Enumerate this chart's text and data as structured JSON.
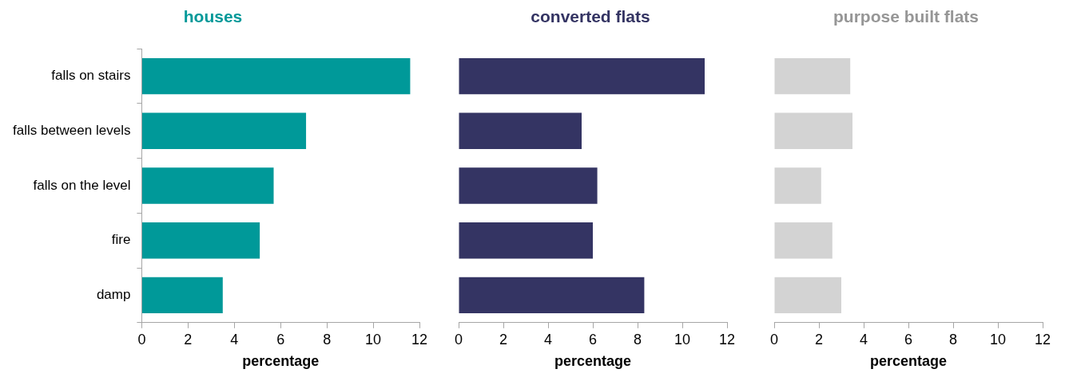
{
  "chart_data": [
    {
      "type": "bar",
      "orientation": "horizontal",
      "title": "houses",
      "xlabel": "percentage",
      "categories": [
        "falls on stairs",
        "falls between levels",
        "falls on the level",
        "fire",
        "damp"
      ],
      "values": [
        11.6,
        7.1,
        5.7,
        5.1,
        3.5
      ],
      "color": "#009999",
      "xlim": [
        0,
        12
      ],
      "xticks": [
        0,
        2,
        4,
        6,
        8,
        10,
        12
      ],
      "grid": false
    },
    {
      "type": "bar",
      "orientation": "horizontal",
      "title": "converted flats",
      "xlabel": "percentage",
      "categories": [
        null,
        null,
        null,
        null,
        null
      ],
      "values": [
        11.0,
        5.5,
        6.2,
        6.0,
        8.3
      ],
      "color": "#343463",
      "xlim": [
        0,
        12
      ],
      "xticks": [
        0,
        2,
        4,
        6,
        8,
        10,
        12
      ],
      "grid": false,
      "tick_labels": "x"
    },
    {
      "type": "bar",
      "orientation": "horizontal",
      "title": "purpose built flats",
      "xlabel": "percentage",
      "categories": [
        null,
        null,
        null,
        null,
        null
      ],
      "values": [
        3.4,
        3.5,
        2.1,
        2.6,
        3.0
      ],
      "color": "#d3d3d3",
      "xlim": [
        0,
        12
      ],
      "xticks": [
        0,
        2,
        4,
        6,
        8,
        10,
        12
      ],
      "grid": false,
      "tick_labels": "x"
    }
  ]
}
